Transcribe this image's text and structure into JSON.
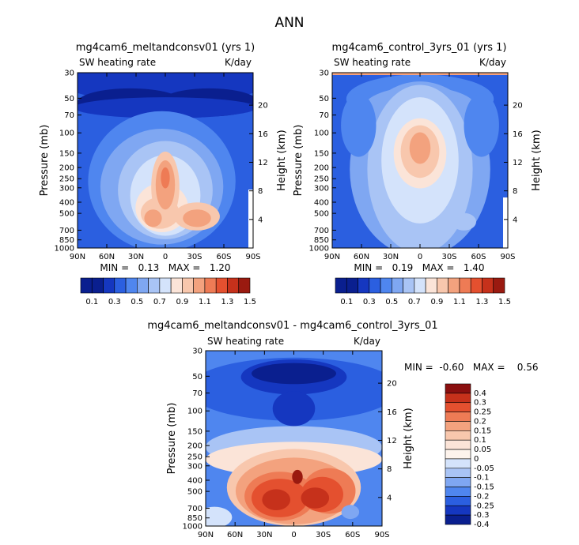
{
  "figure_title": "ANN",
  "colors": {
    "c1": "#0a1f8f",
    "c2": "#1537c0",
    "c3": "#2b5fe0",
    "c4": "#4f86ef",
    "c5": "#7fa7f2",
    "c6": "#a9c4f5",
    "c7": "#d4e3fb",
    "c8": "#fbe4d8",
    "c9": "#f8c7ad",
    "c10": "#f3a27e",
    "c11": "#ee7b55",
    "c12": "#e4502f",
    "c13": "#c6311b",
    "c14": "#9a1a10",
    "d_red_dark": "#8a0f0f"
  },
  "chart_data": [
    {
      "id": "p1",
      "type": "heatmap",
      "title": "mg4cam6_meltandconsv01 (yrs 1)",
      "subtitle_left": "SW heating rate",
      "subtitle_right": "K/day",
      "x_ticks": [
        "90N",
        "60N",
        "30N",
        "0",
        "30S",
        "60S",
        "90S"
      ],
      "xlim": [
        90,
        -90
      ],
      "y_ticks": [
        30,
        50,
        70,
        100,
        150,
        200,
        250,
        300,
        400,
        500,
        700,
        850,
        1000
      ],
      "ylabel": "Pressure (mb)",
      "ylim": [
        30,
        1000
      ],
      "right_axis_ticks": [
        20,
        16,
        12,
        8,
        4
      ],
      "right_axis_label": "Height (km)",
      "stats": "MIN =   0.13   MAX =   1.20",
      "min": 0.13,
      "max": 1.2
    },
    {
      "id": "p2",
      "type": "heatmap",
      "title": "mg4cam6_control_3yrs_01 (yrs 1)",
      "subtitle_left": "SW heating rate",
      "subtitle_right": "K/day",
      "x_ticks": [
        "90N",
        "60N",
        "30N",
        "0",
        "30S",
        "60S",
        "90S"
      ],
      "xlim": [
        90,
        -90
      ],
      "y_ticks": [
        30,
        50,
        70,
        100,
        150,
        200,
        250,
        300,
        400,
        500,
        700,
        850,
        1000
      ],
      "ylabel": "Pressure (mb)",
      "ylim": [
        30,
        1000
      ],
      "right_axis_ticks": [
        20,
        16,
        12,
        8,
        4
      ],
      "right_axis_label": "Height (km)",
      "stats": "MIN =   0.19   MAX =   1.40",
      "min": 0.19,
      "max": 1.4
    },
    {
      "id": "p3",
      "type": "heatmap",
      "title": "mg4cam6_meltandconsv01 - mg4cam6_control_3yrs_01",
      "subtitle_left": "SW heating rate",
      "subtitle_right": "K/day",
      "x_ticks": [
        "90N",
        "60N",
        "30N",
        "0",
        "30S",
        "60S",
        "90S"
      ],
      "xlim": [
        90,
        -90
      ],
      "y_ticks": [
        30,
        50,
        70,
        100,
        150,
        200,
        250,
        300,
        400,
        500,
        700,
        850,
        1000
      ],
      "ylabel": "Pressure (mb)",
      "ylim": [
        30,
        1000
      ],
      "right_axis_ticks": [
        20,
        16,
        12,
        8,
        4
      ],
      "right_axis_label": "Height (km)",
      "stats": "MIN =  -0.60   MAX =    0.56",
      "min": -0.6,
      "max": 0.56
    }
  ],
  "colorbar_top": {
    "labels": [
      "0.1",
      "0.3",
      "0.5",
      "0.7",
      "0.9",
      "1.1",
      "1.3",
      "1.5"
    ],
    "levels": [
      0.1,
      0.2,
      0.3,
      0.4,
      0.5,
      0.6,
      0.7,
      0.8,
      0.9,
      1.0,
      1.1,
      1.2,
      1.3,
      1.4,
      1.5
    ]
  },
  "colorbar_diff": {
    "labels": [
      "0.4",
      "0.3",
      "0.25",
      "0.2",
      "0.15",
      "0.1",
      "0.05",
      "0",
      "-0.05",
      "-0.1",
      "-0.15",
      "-0.2",
      "-0.25",
      "-0.3",
      "-0.4"
    ]
  }
}
